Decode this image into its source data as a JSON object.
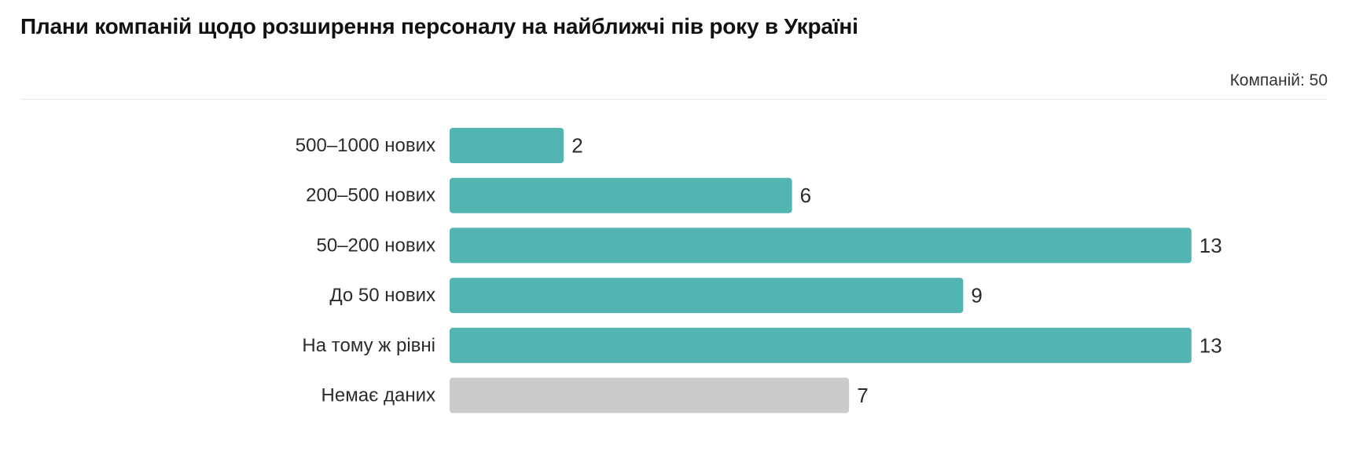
{
  "header": {
    "title": "Плани компаній щодо розширення персоналу на найближчі пів року в Україні",
    "count_label": "Компаній: 50"
  },
  "colors": {
    "primary_bar": "#52b5b1",
    "no_data_bar": "#cbcbcb",
    "label_text": "#2b2b2b"
  },
  "chart_data": {
    "type": "bar",
    "orientation": "horizontal",
    "categories": [
      "500–1000 нових",
      "200–500 нових",
      "50–200 нових",
      "До 50 нових",
      "На тому ж рівні",
      "Немає даних"
    ],
    "values": [
      2,
      6,
      13,
      9,
      13,
      7
    ],
    "highlight": [
      "primary",
      "primary",
      "primary",
      "primary",
      "primary",
      "neutral"
    ],
    "grid": false,
    "legend": "none",
    "value_labels": true
  }
}
